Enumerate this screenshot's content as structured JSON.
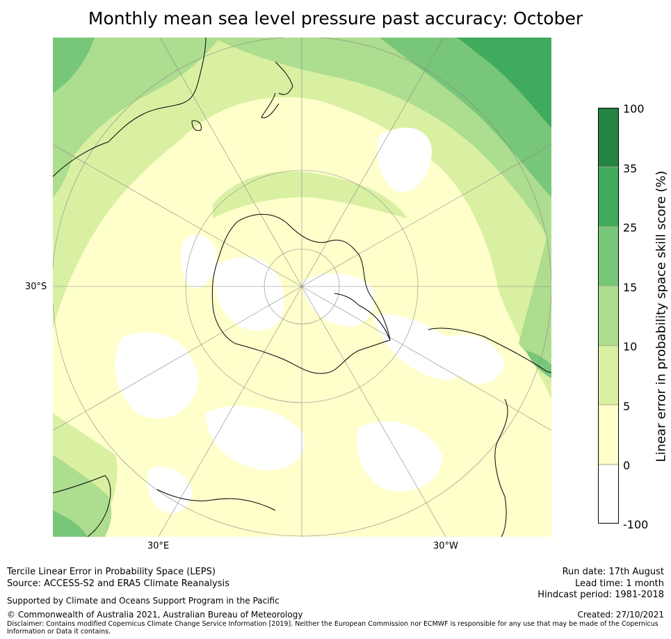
{
  "title": "Monthly mean sea level pressure past accuracy: October",
  "map": {
    "lat_label": "30°S",
    "lon_labels": [
      "30°E",
      "30°W"
    ],
    "colors": {
      "land_outline": "#000000",
      "graticule": "#888888",
      "white": "#ffffff",
      "c0_5": "#ffffcc",
      "c5_10": "#d9f0a3",
      "c10_15": "#addd8e",
      "c15_25": "#78c679",
      "c25_35": "#41ab5d",
      "c35_100": "#238443"
    }
  },
  "colorbar": {
    "title": "Linear error in probability space skill score (%)",
    "ticks": [
      "100",
      "35",
      "25",
      "15",
      "10",
      "5",
      "0",
      "-100"
    ],
    "colors": [
      "#238443",
      "#41ab5d",
      "#78c679",
      "#addd8e",
      "#d9f0a3",
      "#ffffcc",
      "#ffffff"
    ]
  },
  "footer": {
    "method": "Tercile Linear Error in Probability Space (LEPS)",
    "source": "Source: ACCESS-S2 and ERA5 Climate Reanalysis",
    "support": "Supported by Climate and Oceans Support Program in the Pacific",
    "copyright": "© Commonwealth of Australia 2021, Australian Bureau of Meteorology",
    "disclaimer": "Disclaimer: Contains modified Copernicus Climate Change Service Information [2019]. Neither the European Commission nor ECMWF is responsible for any use that may be made of the Copernicus Information or Data it contains.",
    "run_date": "Run date: 17th August",
    "lead_time": "Lead time: 1 month",
    "hindcast": "Hindcast period: 1981-2018",
    "created": "Created: 27/10/2021"
  }
}
